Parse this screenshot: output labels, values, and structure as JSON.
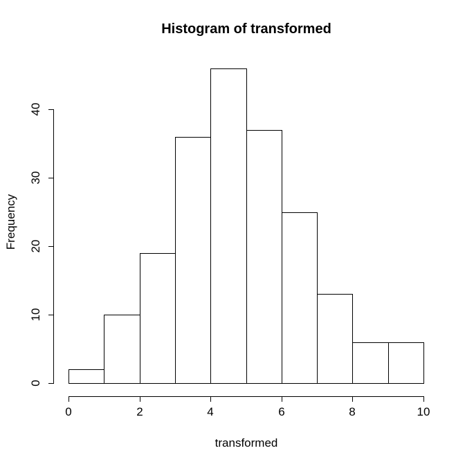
{
  "figure": {
    "background": "#ffffff",
    "stroke_color": "#000000",
    "text_color": "#000000"
  },
  "chart_data": {
    "type": "bar",
    "subtype": "histogram",
    "title": "Histogram of transformed",
    "xlabel": "transformed",
    "ylabel": "Frequency",
    "bin_edges": [
      0,
      1,
      2,
      3,
      4,
      5,
      6,
      7,
      8,
      9,
      10
    ],
    "counts": [
      2,
      10,
      19,
      36,
      46,
      37,
      25,
      13,
      6,
      6
    ],
    "x_ticks": [
      0,
      2,
      4,
      6,
      8,
      10
    ],
    "y_ticks": [
      0,
      10,
      20,
      30,
      40
    ],
    "xlim": [
      0,
      10
    ],
    "ylim": [
      0,
      46
    ],
    "bar_fill": "#ffffff",
    "bar_stroke": "#000000",
    "grid": false,
    "legend": false
  }
}
